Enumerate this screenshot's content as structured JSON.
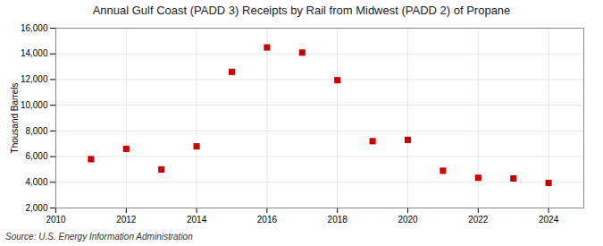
{
  "chart_data": {
    "type": "scatter",
    "title": "Annual Gulf Coast (PADD 3) Receipts by Rail from Midwest (PADD 2) of Propane",
    "ylabel": "Thousand Barrels",
    "source": "Source: U.S. Energy Information Administration",
    "x": [
      2011,
      2012,
      2013,
      2014,
      2015,
      2016,
      2017,
      2018,
      2019,
      2020,
      2021,
      2022,
      2023,
      2024
    ],
    "values": [
      5800,
      6600,
      5000,
      6800,
      12600,
      14500,
      14100,
      11950,
      7200,
      7300,
      4900,
      4350,
      4300,
      3950
    ],
    "color": "#cc0000",
    "marker": "square",
    "xlim": [
      2010,
      2025
    ],
    "xticks": [
      2010,
      2012,
      2014,
      2016,
      2018,
      2020,
      2022,
      2024
    ],
    "ylim": [
      2000,
      16000
    ],
    "yticks": [
      {
        "value": 2000,
        "label": "2,000"
      },
      {
        "value": 4000,
        "label": "4,000"
      },
      {
        "value": 6000,
        "label": "6,000"
      },
      {
        "value": 8000,
        "label": "8,000"
      },
      {
        "value": 10000,
        "label": "10,000"
      },
      {
        "value": 12000,
        "label": "12,000"
      },
      {
        "value": 14000,
        "label": "14,000"
      },
      {
        "value": 16000,
        "label": "16,000"
      }
    ],
    "grid": true
  }
}
